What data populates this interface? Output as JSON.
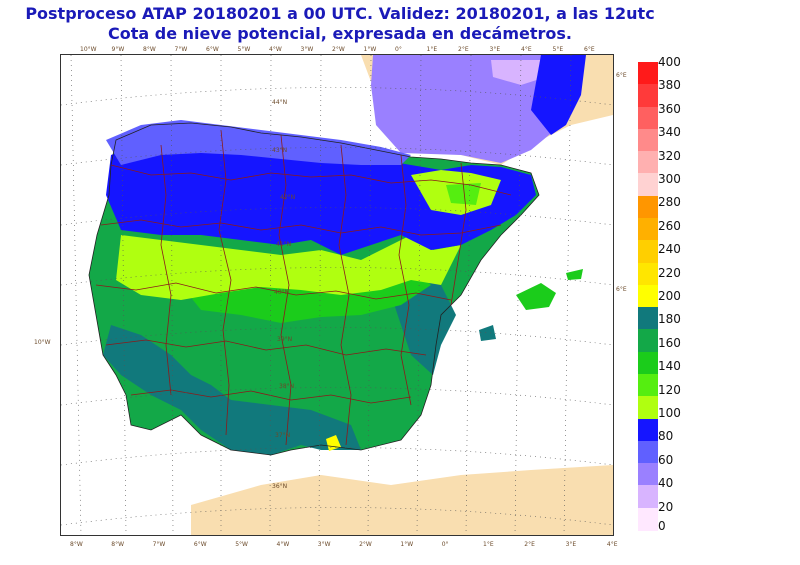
{
  "title_line1": "Postproceso ATAP 20180201 a 00 UTC. Validez: 20180201, a las 12utc",
  "title_line2": "Cota de nieve potencial, expresada en decámetros.",
  "map": {
    "bottom_lon_labels": [
      "8°W",
      "8°W",
      "7°W",
      "6°W",
      "5°W",
      "4°W",
      "3°W",
      "2°W",
      "1°W",
      "0°",
      "1°E",
      "2°E",
      "3°E",
      "4°E"
    ],
    "top_lon_labels": [
      "10°W",
      "9°W",
      "8°W",
      "7°W",
      "6°W",
      "5°W",
      "4°W",
      "3°W",
      "2°W",
      "1°W",
      "0°",
      "1°E",
      "2°E",
      "3°E",
      "4°E",
      "5°E",
      "6°E"
    ],
    "lat_labels": [
      "44°N",
      "43°N",
      "42°N",
      "41°N",
      "40°N",
      "39°N",
      "38°N",
      "37°N",
      "36°N"
    ],
    "left_label": "10°W",
    "right_labels": [
      "6°E",
      "6°E"
    ],
    "land_color": "#f9deb0",
    "sea_color": "#ffffff",
    "border_color": "#8b1a1a"
  },
  "legend": {
    "labels": [
      "400",
      "380",
      "360",
      "340",
      "320",
      "300",
      "280",
      "260",
      "240",
      "220",
      "200",
      "180",
      "160",
      "140",
      "120",
      "100",
      "80",
      "60",
      "40",
      "20",
      "0"
    ],
    "colors": [
      "#ff1a1a",
      "#ff3a3a",
      "#ff6060",
      "#ff8a8a",
      "#ffb0b0",
      "#ffd2d2",
      "#ff9600",
      "#ffb000",
      "#ffcf00",
      "#ffe600",
      "#ffff00",
      "#11797c",
      "#13a848",
      "#1bcc1b",
      "#55ee10",
      "#b0ff10",
      "#1515ff",
      "#6060ff",
      "#9a80ff",
      "#d8b4ff",
      "#ffe8ff"
    ]
  }
}
